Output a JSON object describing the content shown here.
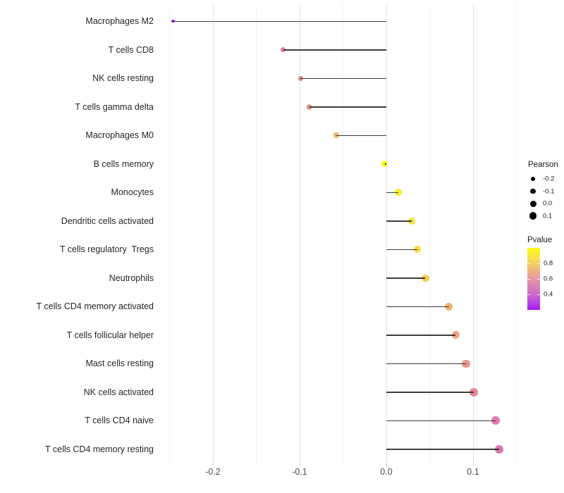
{
  "chart_data": {
    "type": "lollipop",
    "orientation": "horizontal",
    "title": "",
    "xlabel": "",
    "ylabel": "",
    "categories": [
      "Macrophages M2",
      "T cells CD8",
      "NK cells resting",
      "T cells gamma delta",
      "Macrophages M0",
      "B cells memory",
      "Monocytes",
      "Dendritic cells activated",
      "T cells regulatory  Tregs",
      "Neutrophils",
      "T cells CD4 memory activated",
      "T cells follicular helper",
      "Mast cells resting",
      "NK cells activated",
      "T cells CD4 naive",
      "T cells CD4 memory resting"
    ],
    "series": [
      {
        "name": "Pearson",
        "values": [
          -0.246,
          -0.119,
          -0.099,
          -0.089,
          -0.058,
          -0.002,
          0.014,
          0.029,
          0.036,
          0.045,
          0.072,
          0.08,
          0.092,
          0.101,
          0.126,
          0.13
        ]
      },
      {
        "name": "Pvalue",
        "values": [
          0.22,
          0.56,
          0.62,
          0.65,
          0.78,
          0.99,
          0.94,
          0.9,
          0.87,
          0.83,
          0.75,
          0.71,
          0.64,
          0.61,
          0.53,
          0.52
        ]
      }
    ],
    "point_colors": [
      "#9D1CE8",
      "#E27BA4",
      "#E2868B",
      "#E68F7E",
      "#EDB167",
      "#FBFB11",
      "#F9EE2E",
      "#F7E43A",
      "#F6DB41",
      "#F2CE4F",
      "#F0B175",
      "#EEA77D",
      "#EA938D",
      "#E68798",
      "#DE79AE",
      "#DC75B1"
    ],
    "baseline": 0,
    "xlim": [
      -0.265,
      0.158
    ],
    "x_ticks": {
      "labels": [
        "-0.2",
        "-0.1",
        "0.0",
        "0.1"
      ],
      "values": [
        -0.2,
        -0.1,
        0.0,
        0.1
      ]
    },
    "x_minor_ticks": [
      -0.25,
      -0.15,
      -0.05,
      0.05,
      0.15
    ],
    "grid": "vertical major+minor, no axis lines",
    "legend": {
      "position": "right",
      "size": {
        "title": "Pearson",
        "entries": [
          {
            "label": "-0.2",
            "value": -0.2
          },
          {
            "label": "-0.1",
            "value": -0.1
          },
          {
            "label": "0.0",
            "value": 0.0
          },
          {
            "label": "0.1",
            "value": 0.1
          }
        ]
      },
      "color": {
        "title": "Pvalue",
        "range": [
          0.2,
          1.0
        ],
        "tick_labels": [
          "0.8",
          "0.6",
          "0.4"
        ],
        "tick_values": [
          0.8,
          0.6,
          0.4
        ],
        "gradient_top_to_bottom": [
          "#FBFB16",
          "#F8E83E",
          "#F4CF63",
          "#EFB282",
          "#E698A2",
          "#DB81B8",
          "#CC68CE",
          "#B945E3",
          "#A41AF3"
        ]
      }
    },
    "style_colors": {
      "grid_major": "#E3E3E3",
      "grid_minor": "#F2F2F2",
      "stem": "#3C3C3C",
      "axis_text": "#4D4D4D",
      "label_text": "#262626",
      "background": "#FFFFFF"
    }
  }
}
